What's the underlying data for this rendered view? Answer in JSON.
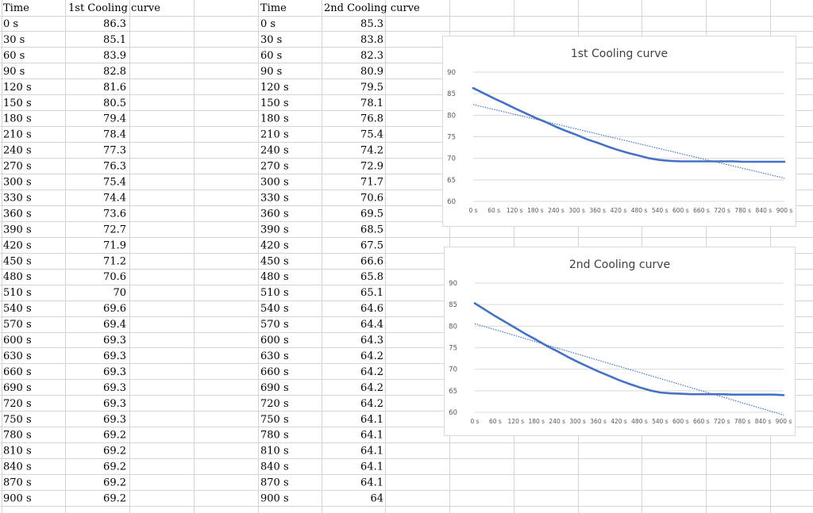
{
  "table1": {
    "header_time": "Time",
    "header_value": "1st Cooling curve",
    "rows": [
      [
        "0 s",
        "86.3"
      ],
      [
        "30 s",
        "85.1"
      ],
      [
        "60 s",
        "83.9"
      ],
      [
        "90 s",
        "82.8"
      ],
      [
        "120 s",
        "81.6"
      ],
      [
        "150 s",
        "80.5"
      ],
      [
        "180 s",
        "79.4"
      ],
      [
        "210 s",
        "78.4"
      ],
      [
        "240 s",
        "77.3"
      ],
      [
        "270 s",
        "76.3"
      ],
      [
        "300 s",
        "75.4"
      ],
      [
        "330 s",
        "74.4"
      ],
      [
        "360 s",
        "73.6"
      ],
      [
        "390 s",
        "72.7"
      ],
      [
        "420 s",
        "71.9"
      ],
      [
        "450 s",
        "71.2"
      ],
      [
        "480 s",
        "70.6"
      ],
      [
        "510 s",
        "70"
      ],
      [
        "540 s",
        "69.6"
      ],
      [
        "570 s",
        "69.4"
      ],
      [
        "600 s",
        "69.3"
      ],
      [
        "630 s",
        "69.3"
      ],
      [
        "660 s",
        "69.3"
      ],
      [
        "690 s",
        "69.3"
      ],
      [
        "720 s",
        "69.3"
      ],
      [
        "750 s",
        "69.3"
      ],
      [
        "780 s",
        "69.2"
      ],
      [
        "810 s",
        "69.2"
      ],
      [
        "840 s",
        "69.2"
      ],
      [
        "870 s",
        "69.2"
      ],
      [
        "900 s",
        "69.2"
      ]
    ]
  },
  "table2": {
    "header_time": "Time",
    "header_value": "2nd Cooling curve",
    "rows": [
      [
        "0 s",
        "85.3"
      ],
      [
        "30 s",
        "83.8"
      ],
      [
        "60 s",
        "82.3"
      ],
      [
        "90 s",
        "80.9"
      ],
      [
        "120 s",
        "79.5"
      ],
      [
        "150 s",
        "78.1"
      ],
      [
        "180 s",
        "76.8"
      ],
      [
        "210 s",
        "75.4"
      ],
      [
        "240 s",
        "74.2"
      ],
      [
        "270 s",
        "72.9"
      ],
      [
        "300 s",
        "71.7"
      ],
      [
        "330 s",
        "70.6"
      ],
      [
        "360 s",
        "69.5"
      ],
      [
        "390 s",
        "68.5"
      ],
      [
        "420 s",
        "67.5"
      ],
      [
        "450 s",
        "66.6"
      ],
      [
        "480 s",
        "65.8"
      ],
      [
        "510 s",
        "65.1"
      ],
      [
        "540 s",
        "64.6"
      ],
      [
        "570 s",
        "64.4"
      ],
      [
        "600 s",
        "64.3"
      ],
      [
        "630 s",
        "64.2"
      ],
      [
        "660 s",
        "64.2"
      ],
      [
        "690 s",
        "64.2"
      ],
      [
        "720 s",
        "64.2"
      ],
      [
        "750 s",
        "64.1"
      ],
      [
        "780 s",
        "64.1"
      ],
      [
        "810 s",
        "64.1"
      ],
      [
        "840 s",
        "64.1"
      ],
      [
        "870 s",
        "64.1"
      ],
      [
        "900 s",
        "64"
      ]
    ]
  },
  "colors": {
    "gridline": "#d4d4d4",
    "series": "#4472c4",
    "trendline": "#4472c4",
    "chart_border": "#d9d9d9",
    "chart_grid": "#d9d9d9",
    "axis_text": "#595959",
    "title_text": "#404040"
  },
  "chart_data": [
    {
      "type": "line",
      "title": "1st Cooling curve",
      "x": [
        "0 s",
        "30 s",
        "60 s",
        "90 s",
        "120 s",
        "150 s",
        "180 s",
        "210 s",
        "240 s",
        "270 s",
        "300 s",
        "330 s",
        "360 s",
        "390 s",
        "420 s",
        "450 s",
        "480 s",
        "510 s",
        "540 s",
        "570 s",
        "600 s",
        "630 s",
        "660 s",
        "690 s",
        "720 s",
        "750 s",
        "780 s",
        "810 s",
        "840 s",
        "870 s",
        "900 s"
      ],
      "x_tick_labels": [
        "0 s",
        "60 s",
        "120 s",
        "180 s",
        "240 s",
        "300 s",
        "360 s",
        "420 s",
        "480 s",
        "540 s",
        "600 s",
        "660 s",
        "720 s",
        "780 s",
        "840 s",
        "900 s"
      ],
      "series": [
        {
          "values": [
            86.3,
            85.1,
            83.9,
            82.8,
            81.6,
            80.5,
            79.4,
            78.4,
            77.3,
            76.3,
            75.4,
            74.4,
            73.6,
            72.7,
            71.9,
            71.2,
            70.6,
            70,
            69.6,
            69.4,
            69.3,
            69.3,
            69.3,
            69.3,
            69.3,
            69.3,
            69.2,
            69.2,
            69.2,
            69.2,
            69.2
          ]
        }
      ],
      "trendline": "linear",
      "ylim": [
        60,
        90
      ],
      "y_ticks": [
        60,
        65,
        70,
        75,
        80,
        85,
        90
      ],
      "grid": true,
      "legend": "none"
    },
    {
      "type": "line",
      "title": "2nd Cooling curve",
      "x": [
        "0 s",
        "30 s",
        "60 s",
        "90 s",
        "120 s",
        "150 s",
        "180 s",
        "210 s",
        "240 s",
        "270 s",
        "300 s",
        "330 s",
        "360 s",
        "390 s",
        "420 s",
        "450 s",
        "480 s",
        "510 s",
        "540 s",
        "570 s",
        "600 s",
        "630 s",
        "660 s",
        "690 s",
        "720 s",
        "750 s",
        "780 s",
        "810 s",
        "840 s",
        "870 s",
        "900 s"
      ],
      "x_tick_labels": [
        "0 s",
        "60 s",
        "120 s",
        "180 s",
        "240 s",
        "300 s",
        "360 s",
        "420 s",
        "480 s",
        "540 s",
        "600 s",
        "660 s",
        "720 s",
        "780 s",
        "840 s",
        "900 s"
      ],
      "series": [
        {
          "values": [
            85.3,
            83.8,
            82.3,
            80.9,
            79.5,
            78.1,
            76.8,
            75.4,
            74.2,
            72.9,
            71.7,
            70.6,
            69.5,
            68.5,
            67.5,
            66.6,
            65.8,
            65.1,
            64.6,
            64.4,
            64.3,
            64.2,
            64.2,
            64.2,
            64.2,
            64.1,
            64.1,
            64.1,
            64.1,
            64.1,
            64
          ]
        }
      ],
      "trendline": "linear",
      "ylim": [
        60,
        90
      ],
      "y_ticks": [
        60,
        65,
        70,
        75,
        80,
        85,
        90
      ],
      "grid": true,
      "legend": "none"
    }
  ]
}
